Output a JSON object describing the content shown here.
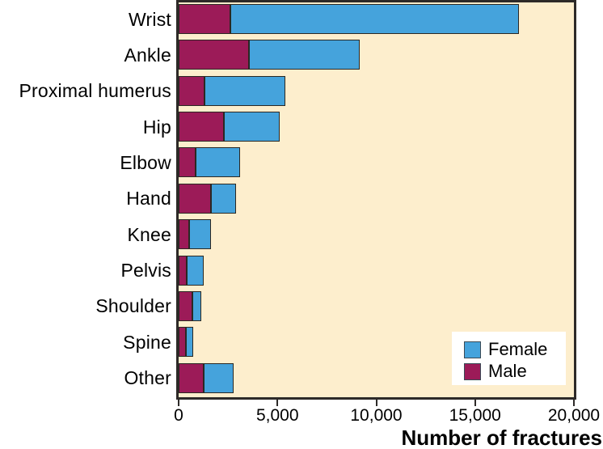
{
  "chart_data": {
    "type": "bar",
    "orientation": "horizontal",
    "stacked": true,
    "title": "",
    "xlabel": "Number of fractures",
    "xlim": [
      0,
      20000
    ],
    "xticks": [
      0,
      5000,
      10000,
      15000,
      20000
    ],
    "xtick_labels": [
      "0",
      "5,000",
      "10,000",
      "15,000",
      "20,000"
    ],
    "grid": false,
    "plot_background": "#fdeecd",
    "categories": [
      "Wrist",
      "Ankle",
      "Proximal humerus",
      "Hip",
      "Elbow",
      "Hand",
      "Knee",
      "Pelvis",
      "Shoulder",
      "Spine",
      "Other"
    ],
    "series": [
      {
        "name": "Male",
        "color": "#9c1b58",
        "values": [
          2600,
          3550,
          1300,
          2300,
          850,
          1650,
          550,
          400,
          700,
          370,
          1250
        ]
      },
      {
        "name": "Female",
        "color": "#45a3dc",
        "values": [
          14600,
          5600,
          4100,
          2800,
          2250,
          1250,
          1100,
          850,
          450,
          380,
          1550
        ]
      }
    ],
    "legend": {
      "position": "bottom-right",
      "items": [
        {
          "label": "Female",
          "color": "#45a3dc"
        },
        {
          "label": "Male",
          "color": "#9c1b58"
        }
      ]
    }
  }
}
